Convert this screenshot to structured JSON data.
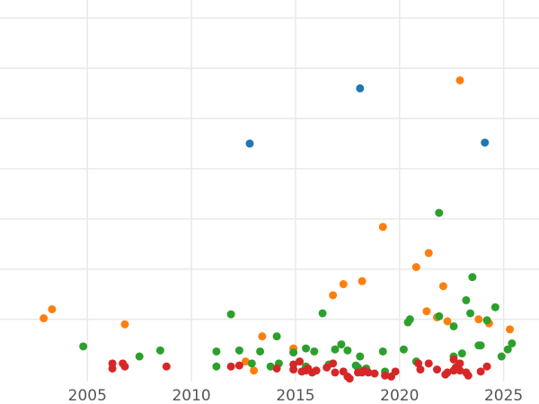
{
  "chart_data": {
    "type": "scatter",
    "title": "",
    "xlabel": "",
    "ylabel": "",
    "xlim": [
      2000.8,
      2026.7
    ],
    "ylim": [
      -1.2,
      36.8
    ],
    "grid": true,
    "legend": "none",
    "x_ticks": [
      2005,
      2010,
      2015,
      2020,
      2025
    ],
    "x_tick_labels": [
      "2005",
      "2010",
      "2015",
      "2020",
      "2025"
    ],
    "y_gridlines": [
      5,
      10,
      15,
      20,
      25,
      30,
      35
    ],
    "series": [
      {
        "color": "#1f77b4",
        "points": [
          [
            2012.8,
            22.5
          ],
          [
            2018.1,
            28.0
          ],
          [
            2024.1,
            22.6
          ]
        ]
      },
      {
        "color": "#ff7f0e",
        "points": [
          [
            2002.9,
            5.1
          ],
          [
            2003.3,
            6.0
          ],
          [
            2006.8,
            4.5
          ],
          [
            2012.6,
            0.8
          ],
          [
            2013.0,
            -0.1
          ],
          [
            2013.4,
            3.3
          ],
          [
            2014.9,
            2.1
          ],
          [
            2016.8,
            7.4
          ],
          [
            2017.3,
            8.5
          ],
          [
            2018.2,
            8.8
          ],
          [
            2019.2,
            14.2
          ],
          [
            2020.8,
            10.2
          ],
          [
            2021.4,
            11.6
          ],
          [
            2021.8,
            5.2
          ],
          [
            2022.1,
            8.3
          ],
          [
            2022.3,
            4.8
          ],
          [
            2021.3,
            5.8
          ],
          [
            2022.9,
            28.8
          ],
          [
            2023.8,
            5.0
          ],
          [
            2024.3,
            4.6
          ],
          [
            2025.3,
            4.0
          ]
        ]
      },
      {
        "color": "#2ca02c",
        "points": [
          [
            2004.8,
            2.3
          ],
          [
            2007.5,
            1.3
          ],
          [
            2008.5,
            1.9
          ],
          [
            2011.2,
            1.8
          ],
          [
            2011.2,
            0.3
          ],
          [
            2011.9,
            5.5
          ],
          [
            2012.3,
            1.9
          ],
          [
            2012.9,
            0.6
          ],
          [
            2013.3,
            1.8
          ],
          [
            2013.8,
            0.3
          ],
          [
            2014.1,
            3.3
          ],
          [
            2014.2,
            0.6
          ],
          [
            2014.9,
            1.7
          ],
          [
            2015.5,
            2.1
          ],
          [
            2015.5,
            0.3
          ],
          [
            2015.9,
            1.8
          ],
          [
            2016.3,
            5.6
          ],
          [
            2016.6,
            0.5
          ],
          [
            2016.9,
            2.0
          ],
          [
            2017.2,
            2.5
          ],
          [
            2017.5,
            1.9
          ],
          [
            2017.9,
            0.4
          ],
          [
            2018.1,
            1.3
          ],
          [
            2018.4,
            0.1
          ],
          [
            2019.2,
            1.8
          ],
          [
            2019.3,
            -0.2
          ],
          [
            2020.2,
            2.0
          ],
          [
            2020.4,
            4.7
          ],
          [
            2020.5,
            5.0
          ],
          [
            2021.9,
            5.3
          ],
          [
            2021.9,
            15.6
          ],
          [
            2022.6,
            4.3
          ],
          [
            2022.6,
            1.3
          ],
          [
            2023.0,
            1.6
          ],
          [
            2023.2,
            6.9
          ],
          [
            2023.4,
            5.6
          ],
          [
            2023.5,
            9.2
          ],
          [
            2023.8,
            2.4
          ],
          [
            2024.2,
            4.9
          ],
          [
            2024.6,
            6.2
          ],
          [
            2024.9,
            1.3
          ],
          [
            2025.2,
            2.0
          ],
          [
            2025.4,
            2.6
          ],
          [
            2023.9,
            2.4
          ],
          [
            2020.8,
            0.8
          ],
          [
            2018.0,
            0.2
          ]
        ]
      },
      {
        "color": "#d62728",
        "points": [
          [
            2006.2,
            0.6
          ],
          [
            2006.2,
            0.1
          ],
          [
            2006.7,
            0.6
          ],
          [
            2006.8,
            0.3
          ],
          [
            2008.8,
            0.3
          ],
          [
            2011.9,
            0.3
          ],
          [
            2012.3,
            0.4
          ],
          [
            2014.1,
            0.1
          ],
          [
            2014.9,
            0.5
          ],
          [
            2014.9,
            0.0
          ],
          [
            2015.2,
            0.8
          ],
          [
            2015.3,
            -0.2
          ],
          [
            2015.6,
            0.1
          ],
          [
            2015.8,
            -0.3
          ],
          [
            2016.0,
            -0.1
          ],
          [
            2016.5,
            0.2
          ],
          [
            2016.8,
            0.6
          ],
          [
            2016.9,
            -0.3
          ],
          [
            2017.3,
            -0.2
          ],
          [
            2017.5,
            -0.7
          ],
          [
            2017.6,
            -0.9
          ],
          [
            2018.0,
            -0.3
          ],
          [
            2018.2,
            -0.3
          ],
          [
            2018.5,
            -0.3
          ],
          [
            2018.8,
            -0.4
          ],
          [
            2019.3,
            -0.6
          ],
          [
            2019.6,
            -0.7
          ],
          [
            2019.8,
            -0.2
          ],
          [
            2020.9,
            0.6
          ],
          [
            2021.0,
            0.0
          ],
          [
            2021.4,
            0.6
          ],
          [
            2021.8,
            0.0
          ],
          [
            2022.2,
            -0.5
          ],
          [
            2022.3,
            -0.3
          ],
          [
            2022.6,
            1.0
          ],
          [
            2022.7,
            0.2
          ],
          [
            2022.9,
            0.6
          ],
          [
            2022.9,
            -0.1
          ],
          [
            2023.2,
            -0.3
          ],
          [
            2023.3,
            -0.6
          ],
          [
            2023.9,
            -0.2
          ],
          [
            2024.2,
            0.3
          ],
          [
            2022.6,
            -0.1
          ],
          [
            2018.3,
            -0.1
          ],
          [
            2015.5,
            -0.1
          ],
          [
            2022.8,
            0.3
          ]
        ]
      }
    ]
  }
}
